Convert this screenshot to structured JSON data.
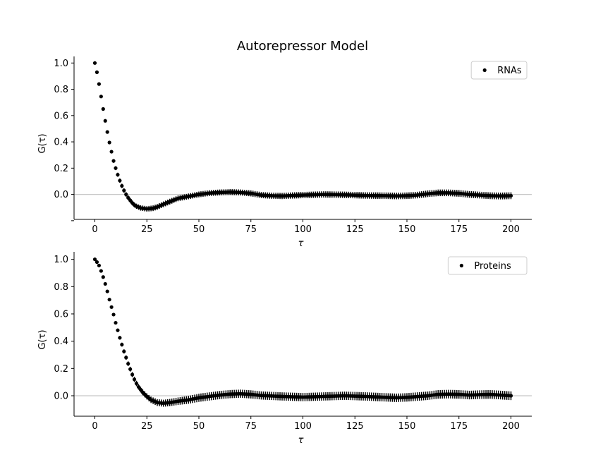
{
  "figure": {
    "title": "Autorepressor Model"
  },
  "chart_data": [
    {
      "type": "scatter",
      "name": "top-panel",
      "title": "Autorepressor Model",
      "xlabel": "τ",
      "ylabel": "G(τ)",
      "xlim": [
        -10,
        210
      ],
      "ylim": [
        -0.19,
        1.05
      ],
      "xticks": [
        0,
        25,
        50,
        75,
        100,
        125,
        150,
        175,
        200
      ],
      "yticks": [
        -0.2,
        0.0,
        0.2,
        0.4,
        0.6,
        0.8,
        1.0
      ],
      "ytick_labels": [
        "",
        "0.0",
        "0.2",
        "0.4",
        "0.6",
        "0.8",
        "1.0"
      ],
      "reference_line_y": 0,
      "reference_line_color": "#c8c8c8",
      "marker_color": "#000000",
      "grid": false,
      "legend_position": "top-right",
      "series": [
        {
          "name": "RNAs",
          "anchors": [
            [
              0,
              1.0
            ],
            [
              1,
              0.93
            ],
            [
              2,
              0.84
            ],
            [
              3,
              0.745
            ],
            [
              4,
              0.65
            ],
            [
              5,
              0.56
            ],
            [
              6,
              0.475
            ],
            [
              7,
              0.395
            ],
            [
              8,
              0.325
            ],
            [
              9,
              0.255
            ],
            [
              10,
              0.2
            ],
            [
              11,
              0.15
            ],
            [
              12,
              0.105
            ],
            [
              13,
              0.065
            ],
            [
              14,
              0.03
            ],
            [
              15,
              0.0
            ],
            [
              16,
              -0.025
            ],
            [
              17,
              -0.045
            ],
            [
              18,
              -0.065
            ],
            [
              19,
              -0.08
            ],
            [
              20,
              -0.09
            ],
            [
              22,
              -0.103
            ],
            [
              25,
              -0.11
            ],
            [
              28,
              -0.105
            ],
            [
              30,
              -0.095
            ],
            [
              33,
              -0.075
            ],
            [
              36,
              -0.055
            ],
            [
              40,
              -0.03
            ],
            [
              45,
              -0.015
            ],
            [
              50,
              0.0
            ],
            [
              55,
              0.01
            ],
            [
              60,
              0.015
            ],
            [
              65,
              0.018
            ],
            [
              70,
              0.015
            ],
            [
              75,
              0.008
            ],
            [
              80,
              -0.005
            ],
            [
              85,
              -0.01
            ],
            [
              90,
              -0.012
            ],
            [
              95,
              -0.008
            ],
            [
              100,
              -0.005
            ],
            [
              110,
              0.0
            ],
            [
              120,
              -0.003
            ],
            [
              130,
              -0.008
            ],
            [
              140,
              -0.01
            ],
            [
              145,
              -0.012
            ],
            [
              150,
              -0.01
            ],
            [
              155,
              -0.005
            ],
            [
              160,
              0.005
            ],
            [
              165,
              0.012
            ],
            [
              170,
              0.012
            ],
            [
              175,
              0.008
            ],
            [
              180,
              0.0
            ],
            [
              185,
              -0.005
            ],
            [
              190,
              -0.01
            ],
            [
              195,
              -0.012
            ],
            [
              200,
              -0.01
            ]
          ],
          "error_bar": [
            [
              0,
              0.003
            ],
            [
              5,
              0.01
            ],
            [
              10,
              0.015
            ],
            [
              20,
              0.02
            ],
            [
              30,
              0.022
            ],
            [
              50,
              0.022
            ],
            [
              100,
              0.024
            ],
            [
              150,
              0.025
            ],
            [
              200,
              0.026
            ]
          ]
        }
      ]
    },
    {
      "type": "scatter",
      "name": "bottom-panel",
      "xlabel": "τ",
      "ylabel": "G(τ)",
      "xlim": [
        -10,
        210
      ],
      "ylim": [
        -0.15,
        1.055
      ],
      "xticks": [
        0,
        25,
        50,
        75,
        100,
        125,
        150,
        175,
        200
      ],
      "yticks": [
        0.0,
        0.2,
        0.4,
        0.6,
        0.8,
        1.0
      ],
      "reference_line_y": 0,
      "reference_line_color": "#c8c8c8",
      "marker_color": "#000000",
      "grid": false,
      "legend_position": "top-right",
      "series": [
        {
          "name": "Proteins",
          "anchors": [
            [
              0,
              1.0
            ],
            [
              1,
              0.98
            ],
            [
              2,
              0.955
            ],
            [
              3,
              0.915
            ],
            [
              4,
              0.87
            ],
            [
              5,
              0.82
            ],
            [
              6,
              0.765
            ],
            [
              7,
              0.705
            ],
            [
              8,
              0.65
            ],
            [
              9,
              0.595
            ],
            [
              10,
              0.535
            ],
            [
              11,
              0.48
            ],
            [
              12,
              0.425
            ],
            [
              13,
              0.375
            ],
            [
              14,
              0.325
            ],
            [
              15,
              0.28
            ],
            [
              16,
              0.235
            ],
            [
              17,
              0.195
            ],
            [
              18,
              0.155
            ],
            [
              19,
              0.12
            ],
            [
              20,
              0.09
            ],
            [
              21,
              0.065
            ],
            [
              22,
              0.045
            ],
            [
              23,
              0.025
            ],
            [
              24,
              0.01
            ],
            [
              25,
              -0.005
            ],
            [
              27,
              -0.03
            ],
            [
              30,
              -0.05
            ],
            [
              33,
              -0.055
            ],
            [
              36,
              -0.05
            ],
            [
              40,
              -0.04
            ],
            [
              45,
              -0.03
            ],
            [
              50,
              -0.015
            ],
            [
              55,
              -0.005
            ],
            [
              60,
              0.005
            ],
            [
              65,
              0.012
            ],
            [
              70,
              0.015
            ],
            [
              75,
              0.01
            ],
            [
              80,
              0.002
            ],
            [
              90,
              -0.005
            ],
            [
              100,
              -0.01
            ],
            [
              110,
              -0.005
            ],
            [
              120,
              0.0
            ],
            [
              130,
              -0.005
            ],
            [
              140,
              -0.012
            ],
            [
              145,
              -0.015
            ],
            [
              150,
              -0.012
            ],
            [
              160,
              0.0
            ],
            [
              165,
              0.01
            ],
            [
              170,
              0.012
            ],
            [
              175,
              0.01
            ],
            [
              180,
              0.005
            ],
            [
              185,
              0.008
            ],
            [
              190,
              0.01
            ],
            [
              195,
              0.005
            ],
            [
              200,
              0.0
            ]
          ],
          "error_bar": [
            [
              0,
              0.003
            ],
            [
              5,
              0.008
            ],
            [
              10,
              0.012
            ],
            [
              20,
              0.02
            ],
            [
              30,
              0.025
            ],
            [
              50,
              0.03
            ],
            [
              100,
              0.03
            ],
            [
              150,
              0.031
            ],
            [
              200,
              0.032
            ]
          ]
        }
      ]
    }
  ]
}
